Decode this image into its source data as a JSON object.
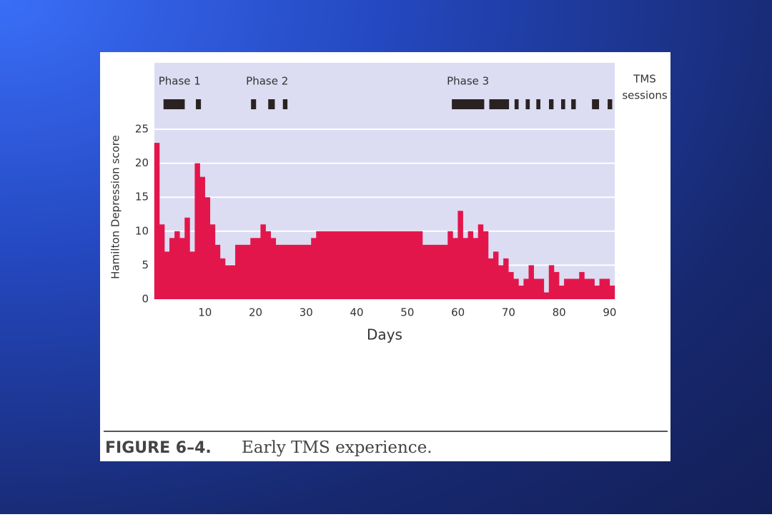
{
  "chart_data": {
    "type": "bar",
    "y_label": "Hamilton Depression score",
    "x_label": "Days",
    "sessions_label": [
      "TMS",
      "sessions"
    ],
    "color": "#e3164c",
    "session_color": "#2a2222",
    "x": [
      0,
      1,
      2,
      3,
      4,
      5,
      6,
      7,
      8,
      9,
      10,
      11,
      12,
      13,
      14,
      15,
      16,
      17,
      18,
      19,
      20,
      21,
      22,
      23,
      24,
      25,
      26,
      27,
      28,
      29,
      30,
      31,
      32,
      33,
      34,
      35,
      36,
      37,
      38,
      39,
      40,
      41,
      42,
      43,
      44,
      45,
      46,
      47,
      48,
      49,
      50,
      51,
      52,
      53,
      54,
      55,
      56,
      57,
      58,
      59,
      60,
      61,
      62,
      63,
      64,
      65,
      66,
      67,
      68,
      69,
      70,
      71,
      72,
      73,
      74,
      75,
      76,
      77,
      78,
      79,
      80,
      81,
      82,
      83,
      84,
      85,
      86,
      87,
      88,
      89,
      90
    ],
    "values": [
      23,
      11,
      7,
      9,
      10,
      9,
      12,
      7,
      20,
      18,
      15,
      11,
      8,
      6,
      5,
      5,
      8,
      8,
      8,
      9,
      9,
      11,
      10,
      9,
      8,
      8,
      8,
      8,
      8,
      8,
      8,
      9,
      10,
      10,
      10,
      10,
      10,
      10,
      10,
      10,
      10,
      10,
      10,
      10,
      10,
      10,
      10,
      10,
      10,
      10,
      10,
      10,
      10,
      8,
      8,
      8,
      8,
      8,
      10,
      9,
      13,
      9,
      10,
      9,
      11,
      10,
      6,
      7,
      5,
      6,
      4,
      3,
      2,
      3,
      5,
      3,
      3,
      1,
      5,
      4,
      2,
      3,
      3,
      3,
      4,
      3,
      3,
      2,
      3,
      3,
      2
    ],
    "xlim": [
      0,
      91
    ],
    "ylim": [
      0,
      25
    ],
    "xticks": [
      10,
      20,
      30,
      40,
      50,
      60,
      70,
      80,
      90
    ],
    "yticks": [
      0,
      5,
      10,
      15,
      20,
      25
    ],
    "grid": true,
    "phases": [
      {
        "label": "Phase 1",
        "sessions": [
          [
            1.8,
            6
          ],
          [
            8.2,
            9.2
          ]
        ]
      },
      {
        "label": "Phase 2",
        "sessions": [
          [
            19.1,
            20.1
          ],
          [
            22.5,
            23.8
          ],
          [
            25.4,
            26.3
          ]
        ]
      },
      {
        "label": "Phase 3",
        "sessions": [
          [
            58.8,
            65.2
          ],
          [
            66.2,
            70.1
          ],
          [
            71.2,
            72
          ],
          [
            73.4,
            74.2
          ],
          [
            75.5,
            76.3
          ],
          [
            78,
            78.9
          ],
          [
            80.4,
            81.2
          ],
          [
            82.4,
            83.3
          ],
          [
            86.5,
            87.9
          ],
          [
            89.6,
            90.5
          ]
        ]
      }
    ]
  },
  "caption": {
    "label": "FIGURE 6–4.",
    "text": "Early TMS experience."
  }
}
